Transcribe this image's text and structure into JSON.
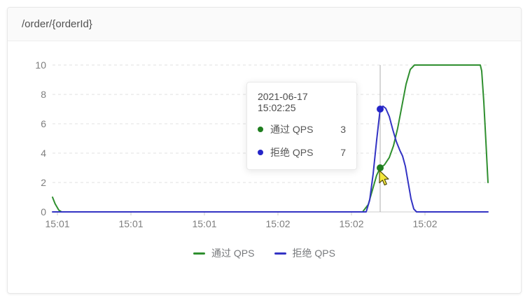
{
  "card": {
    "title": "/order/{orderId}"
  },
  "tooltip": {
    "timestamp": "2021-06-17 15:02:25",
    "rows": [
      {
        "label": "通过 QPS",
        "value": "3",
        "color": "#1f7e1f"
      },
      {
        "label": "拒绝 QPS",
        "value": "7",
        "color": "#2525c8"
      }
    ]
  },
  "legend": [
    {
      "label": "通过 QPS",
      "color": "#2f8f2f"
    },
    {
      "label": "拒绝 QPS",
      "color": "#3333c4"
    }
  ],
  "colors": {
    "pass_line": "#2f8f2f",
    "reject_line": "#3333c4",
    "gridline": "#e2e2e2",
    "axis": "#cccccc",
    "axis_label": "#7e7e7e",
    "crosshair": "#adadad"
  },
  "chart_data": {
    "type": "line",
    "title": "/order/{orderId}",
    "xlabel": "",
    "ylabel": "",
    "grid": true,
    "legend_position": "bottom",
    "x_axis": {
      "tick_labels": [
        "15:01",
        "15:01",
        "15:01",
        "15:02",
        "15:02",
        "15:02"
      ],
      "tick_positions": [
        0.0113,
        0.1801,
        0.3489,
        0.5177,
        0.6865,
        0.8553
      ]
    },
    "y_axis": {
      "ticks": [
        0,
        2,
        4,
        6,
        8,
        10
      ],
      "range": [
        0,
        10
      ]
    },
    "crosshair_x": 0.7524,
    "highlight": {
      "time": "2021-06-17 15:02:25",
      "values": {
        "通过 QPS": 3,
        "拒绝 QPS": 7
      }
    },
    "series": [
      {
        "id": "pass",
        "name": "通过 QPS",
        "color": "#2f8f2f",
        "points": [
          [
            0,
            1
          ],
          [
            0.006,
            0.55
          ],
          [
            0.0145,
            0.12
          ],
          [
            0.021,
            0
          ],
          [
            0.712,
            0
          ],
          [
            0.725,
            0.5
          ],
          [
            0.7347,
            1.5
          ],
          [
            0.7444,
            2.5
          ],
          [
            0.7524,
            3
          ],
          [
            0.762,
            3.2
          ],
          [
            0.7733,
            3.7
          ],
          [
            0.783,
            4.5
          ],
          [
            0.7926,
            5.7
          ],
          [
            0.8023,
            7.2
          ],
          [
            0.8119,
            8.7
          ],
          [
            0.8215,
            9.7
          ],
          [
            0.8312,
            10
          ],
          [
            0.9823,
            10
          ],
          [
            0.9855,
            9.6
          ],
          [
            0.9904,
            7.5
          ],
          [
            0.9952,
            4.8
          ],
          [
            1,
            2
          ]
        ]
      },
      {
        "id": "reject",
        "name": "拒绝 QPS",
        "color": "#3333c4",
        "points": [
          [
            0,
            0
          ],
          [
            0.7203,
            0
          ],
          [
            0.7283,
            0.8
          ],
          [
            0.7363,
            2.6
          ],
          [
            0.7444,
            4.9
          ],
          [
            0.7524,
            7
          ],
          [
            0.7588,
            7.2
          ],
          [
            0.7653,
            7.05
          ],
          [
            0.7733,
            6.5
          ],
          [
            0.7814,
            5.6
          ],
          [
            0.7894,
            4.8
          ],
          [
            0.7974,
            4.2
          ],
          [
            0.8039,
            3.8
          ],
          [
            0.8103,
            3.1
          ],
          [
            0.8167,
            2
          ],
          [
            0.8232,
            0.9
          ],
          [
            0.8296,
            0.2
          ],
          [
            0.836,
            0
          ],
          [
            1,
            0
          ]
        ]
      }
    ],
    "markers": [
      {
        "id": "pass",
        "x": 0.7524,
        "y": 3,
        "color": "#1f7e1f"
      },
      {
        "id": "reject",
        "x": 0.7524,
        "y": 7,
        "color": "#2525c8"
      }
    ]
  }
}
